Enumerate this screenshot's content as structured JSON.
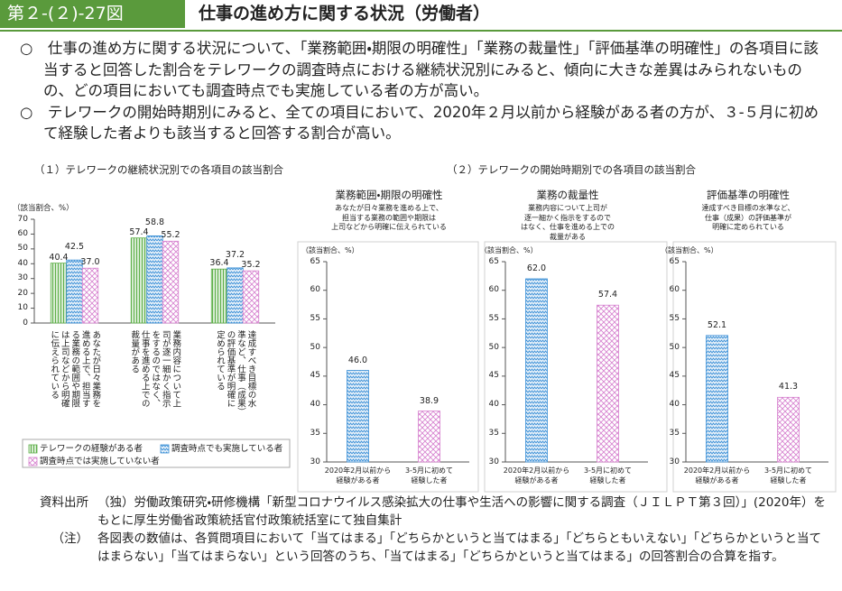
{
  "header": {
    "figure_number": "第２-(２)-27図",
    "title": "仕事の進め方に関する状況（労働者）"
  },
  "summary": [
    "○　仕事の進め方に関する状況について、「業務範囲・期限の明確性」「業務の裁量性」「評価基準の明確性」の各項目に該当すると回答した割合をテレワークの調査時点における継続状況別にみると、傾向に大きな差異はみられないものの、どの項目においても調査時点でも実施している者の方が高い。",
    "○　テレワークの開始時期別にみると、全ての項目において、2020年２月以前から経験がある者の方が、３-５月に初めて経験した者よりも該当すると回答する割合が高い。"
  ],
  "sections": [
    "（１）テレワークの継続状況別での各項目の該当割合",
    "（２）テレワークの開始時期別での各項目の該当割合"
  ],
  "chart_data": [
    {
      "type": "bar",
      "y_label": "（該当割合、%）",
      "categories": [
        "あなたが日々業務を進める上で、担当する業務の範囲や期限は上司などから明確に伝えられている",
        "業務内容について上司が逐一細かく指示をするのではなく、仕事を進める上での裁量がある",
        "達成すべき目標の水準など、仕事（成果）の評価基準が明確に定められている"
      ],
      "series": [
        {
          "name": "テレワークの経験がある者",
          "color": "#5fb04a",
          "hatch": "vertical",
          "values": [
            40.4,
            57.4,
            36.4
          ],
          "value_labels": [
            "40.4",
            "57.4",
            "36.4"
          ]
        },
        {
          "name": "調査時点でも実施している者",
          "color": "#3a8fd6",
          "hatch": "wave",
          "values": [
            42.5,
            58.8,
            37.2
          ],
          "value_labels": [
            "42.5",
            "58.8",
            "37.2"
          ]
        },
        {
          "name": "調査時点では実施していない者",
          "color": "#d67fce",
          "hatch": "cross",
          "values": [
            37.0,
            55.2,
            35.2
          ],
          "value_labels": [
            "37.0",
            "55.2",
            "35.2"
          ]
        }
      ],
      "ylim": [
        0,
        70
      ],
      "yticks": [
        0,
        10,
        20,
        30,
        40,
        50,
        60,
        70
      ],
      "grid": false,
      "legend": "bottom-left"
    },
    {
      "type": "bar",
      "title": "業務範囲・期限の明確性",
      "description": "あなたが日々業務を進める上で、\n担当する業務の範囲や期限は\n上司などから明確に伝えられている",
      "y_label": "（該当割合、%）",
      "categories": [
        "2020年2月以前から\n経験がある者",
        "3-5月に初めて\n経験した者"
      ],
      "values": [
        46.0,
        38.9
      ],
      "value_labels": [
        "46.0",
        "38.9"
      ],
      "colors": [
        "#3a8fd6",
        "#d67fce"
      ],
      "hatches": [
        "wave",
        "cross"
      ],
      "ylim": [
        30,
        65
      ],
      "yticks": [
        30,
        35,
        40,
        45,
        50,
        55,
        60,
        65
      ],
      "grid": false
    },
    {
      "type": "bar",
      "title": "業務の裁量性",
      "description": "業務内容について上司が\n逐一細かく指示をするので\nはなく、仕事を進める上での\n裁量がある",
      "y_label": "（該当割合、%）",
      "categories": [
        "2020年2月以前から\n経験がある者",
        "3-5月に初めて\n経験した者"
      ],
      "values": [
        62.0,
        57.4
      ],
      "value_labels": [
        "62.0",
        "57.4"
      ],
      "colors": [
        "#3a8fd6",
        "#d67fce"
      ],
      "hatches": [
        "wave",
        "cross"
      ],
      "ylim": [
        30,
        65
      ],
      "yticks": [
        30,
        35,
        40,
        45,
        50,
        55,
        60,
        65
      ],
      "grid": false
    },
    {
      "type": "bar",
      "title": "評価基準の明確性",
      "description": "達成すべき目標の水準など、\n仕事（成果）の評価基準が\n明確に定められている",
      "y_label": "（該当割合、%）",
      "categories": [
        "2020年2月以前から\n経験がある者",
        "3-5月に初めて\n経験した者"
      ],
      "values": [
        52.1,
        41.3
      ],
      "value_labels": [
        "52.1",
        "41.3"
      ],
      "colors": [
        "#3a8fd6",
        "#d67fce"
      ],
      "hatches": [
        "wave",
        "cross"
      ],
      "ylim": [
        30,
        65
      ],
      "yticks": [
        30,
        35,
        40,
        45,
        50,
        55,
        60,
        65
      ],
      "grid": false
    }
  ],
  "notes": [
    {
      "label": "資料出所",
      "text": "（独）労働政策研究・研修機構「新型コロナウイルス感染拡大の仕事や生活への影響に関する調査（ＪＩＬＰＴ第３回）」(2020年）をもとに厚生労働省政策統括官付政策統括室にて独自集計"
    },
    {
      "label": "（注）",
      "text": "各図表の数値は、各質問項目において「当てはまる」「どちらかというと当てはまる」「どちらともいえない」「どちらかというと当てはまらない」「当てはまらない」という回答のうち、「当てはまる」「どちらかというと当てはまる」の回答割合の合算を指す。"
    }
  ]
}
